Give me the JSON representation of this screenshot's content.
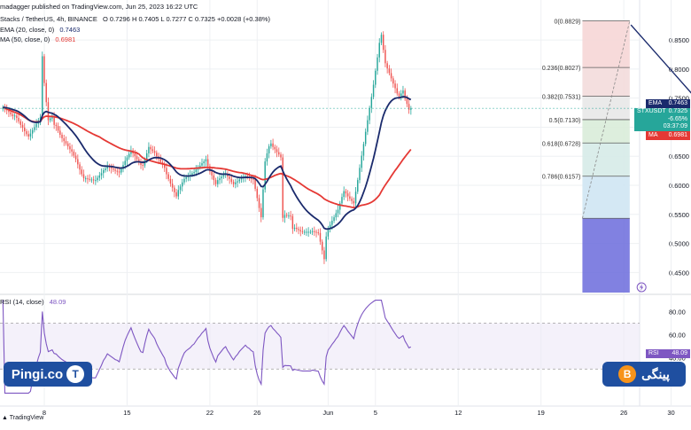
{
  "header": {
    "published": "madagger published on TradingView.com, Jun 25, 2023 16:22 UTC",
    "symbol_line": "Stacks / TetherUS, 4h, BINANCE",
    "ohlc": "O 0.7296  H 0.7405  L 0.7277  C 0.7325  +0.0028 (+0.38%)",
    "ema_label": "EMA (20, close, 0)",
    "ema_value": "0.7463",
    "sma_label": "MA (50, close, 0)",
    "sma_value": "0.6981"
  },
  "tags": {
    "ema_name": "EMA",
    "ema_value": "0.7463",
    "sym_name": "STXUSDT",
    "price": "0.7325",
    "pct": "-6.65%",
    "countdown": "03:37:09",
    "ma_name": "MA",
    "ma_value": "0.6981",
    "rsi_name": "RSI",
    "rsi_value": "48.09"
  },
  "rsi_header": {
    "label": "RSI (14, close)",
    "value": "48.09"
  },
  "footer": "TradingView",
  "watermark": {
    "left": "Pingi.co",
    "right": "پینگی",
    "left_coin": "T",
    "right_coin": "B"
  },
  "colors": {
    "up": "#26a69a",
    "down": "#ef5350",
    "ema": "#1a2a6c",
    "sma": "#e53935",
    "rsi": "#7e57c2",
    "fibline": "#5b5b5b",
    "bluebox": "#6b6bdc",
    "grid": "#eef0f3"
  },
  "chart_data": [
    {
      "type": "candlestick",
      "title": "Stacks / TetherUS, 4h, BINANCE",
      "y_axis_ticks": [
        0.85,
        0.8,
        0.75,
        0.7,
        0.65,
        0.6,
        0.55,
        0.5,
        0.45
      ],
      "ylim": [
        0.4155,
        0.8852
      ],
      "x_tick_labels": [
        "8",
        "15",
        "22",
        "26",
        "Jun",
        "5",
        "12",
        "19",
        "26",
        "30"
      ],
      "x_tick_days": [
        8,
        15,
        22,
        26,
        32,
        36,
        43,
        50,
        57,
        61
      ],
      "x_range_days": [
        4.5,
        63.5
      ],
      "candles_per_day": 6,
      "closes": [
        0.734,
        0.731,
        0.729,
        0.726,
        0.722,
        0.719,
        0.72,
        0.716,
        0.71,
        0.704,
        0.699,
        0.693,
        0.688,
        0.684,
        0.689,
        0.695,
        0.7,
        0.706,
        0.712,
        0.717,
        0.822,
        0.776,
        0.743,
        0.712,
        0.715,
        0.718,
        0.704,
        0.702,
        0.694,
        0.687,
        0.681,
        0.676,
        0.672,
        0.667,
        0.662,
        0.658,
        0.651,
        0.645,
        0.636,
        0.627,
        0.619,
        0.612,
        0.612,
        0.611,
        0.61,
        0.61,
        0.609,
        0.609,
        0.613,
        0.617,
        0.621,
        0.626,
        0.629,
        0.633,
        0.631,
        0.629,
        0.627,
        0.625,
        0.624,
        0.622,
        0.628,
        0.635,
        0.642,
        0.648,
        0.654,
        0.66,
        0.655,
        0.65,
        0.645,
        0.64,
        0.635,
        0.634,
        0.644,
        0.655,
        0.666,
        0.662,
        0.659,
        0.656,
        0.65,
        0.645,
        0.64,
        0.635,
        0.63,
        0.619,
        0.611,
        0.603,
        0.596,
        0.588,
        0.581,
        0.592,
        0.598,
        0.605,
        0.611,
        0.614,
        0.616,
        0.618,
        0.621,
        0.623,
        0.627,
        0.631,
        0.634,
        0.638,
        0.641,
        0.645,
        0.633,
        0.624,
        0.617,
        0.609,
        0.602,
        0.609,
        0.612,
        0.615,
        0.618,
        0.62,
        0.615,
        0.611,
        0.606,
        0.602,
        0.605,
        0.607,
        0.61,
        0.612,
        0.614,
        0.616,
        0.614,
        0.613,
        0.611,
        0.61,
        0.594,
        0.578,
        0.561,
        0.545,
        0.593,
        0.641,
        0.655,
        0.667,
        0.672,
        0.666,
        0.662,
        0.657,
        0.653,
        0.648,
        0.544,
        0.549,
        0.548,
        0.548,
        0.547,
        0.525,
        0.527,
        0.525,
        0.523,
        0.521,
        0.52,
        0.52,
        0.52,
        0.52,
        0.52,
        0.521,
        0.52,
        0.519,
        0.518,
        0.503,
        0.488,
        0.473,
        0.512,
        0.526,
        0.532,
        0.539,
        0.545,
        0.552,
        0.558,
        0.569,
        0.58,
        0.59,
        0.586,
        0.581,
        0.577,
        0.573,
        0.569,
        0.589,
        0.609,
        0.63,
        0.651,
        0.671,
        0.692,
        0.712,
        0.733,
        0.752,
        0.773,
        0.797,
        0.82,
        0.845,
        0.859,
        0.833,
        0.81,
        0.801,
        0.793,
        0.784,
        0.775,
        0.767,
        0.758,
        0.753,
        0.758,
        0.763,
        0.749,
        0.74,
        0.73,
        0.7325
      ],
      "ema20_last": 0.7463,
      "ma50_last": 0.6981,
      "fibonacci": [
        {
          "ratio": "0",
          "price": 0.8829,
          "label": "0(0.8829)"
        },
        {
          "ratio": "0.236",
          "price": 0.8027,
          "label": "0.236(0.8027)"
        },
        {
          "ratio": "0.382",
          "price": 0.7531,
          "label": "0.382(0.7531)"
        },
        {
          "ratio": "0.5",
          "price": 0.713,
          "label": "0.5(0.7130)"
        },
        {
          "ratio": "0.618",
          "price": 0.6728,
          "label": "0.618(0.6728)"
        },
        {
          "ratio": "0.786",
          "price": 0.6157,
          "label": "0.786(0.6157)"
        },
        {
          "ratio": "1",
          "price": 0.5432,
          "label": ""
        }
      ],
      "fib_zone_days": [
        53.5,
        57.5
      ],
      "fib_zone_colors": [
        "#f6d6d6",
        "#f3dcdc",
        "#e8e8e8",
        "#d9ecd9",
        "#d6ebe8",
        "#cfe5f3"
      ],
      "blue_box": {
        "day_start": 53.5,
        "day_end": 57.5,
        "price_top": 0.5432,
        "price_bottom": 0.4155
      },
      "resistance_line": {
        "from_day": 57.6,
        "from_price": 0.876,
        "to_day": 63.0,
        "to_price": 0.752
      },
      "current_price": 0.7325
    },
    {
      "type": "line",
      "title": "RSI (14, close)",
      "y_axis_ticks": [
        80,
        60,
        40
      ],
      "ylim": [
        7,
        92
      ],
      "upper_band": 70,
      "lower_band": 30,
      "last": 48.09
    }
  ]
}
